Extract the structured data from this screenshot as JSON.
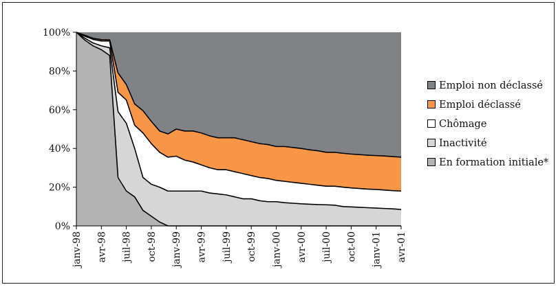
{
  "chart_data": {
    "type": "area",
    "stacked": true,
    "percent": true,
    "title": "",
    "xlabel": "",
    "ylabel": "",
    "ylim": [
      0,
      100
    ],
    "y_ticks": [
      "0%",
      "20%",
      "40%",
      "60%",
      "80%",
      "100%"
    ],
    "x_tick_labels": [
      "janv-98",
      "avr-98",
      "juil-98",
      "oct-98",
      "janv-99",
      "avr-99",
      "juil-99",
      "oct-99",
      "janv-00",
      "avr-00",
      "juil-00",
      "oct-00",
      "janv-01",
      "avr-01"
    ],
    "x": [
      "janv-98",
      "févr-98",
      "mars-98",
      "avr-98",
      "mai-98",
      "juin-98",
      "juil-98",
      "août-98",
      "sept-98",
      "oct-98",
      "nov-98",
      "déc-98",
      "janv-99",
      "févr-99",
      "mars-99",
      "avr-99",
      "mai-99",
      "juin-99",
      "juil-99",
      "août-99",
      "sept-99",
      "oct-99",
      "nov-99",
      "déc-99",
      "janv-00",
      "févr-00",
      "mars-00",
      "avr-00",
      "mai-00",
      "juin-00",
      "juil-00",
      "août-00",
      "sept-00",
      "oct-00",
      "nov-00",
      "déc-00",
      "janv-01",
      "févr-01",
      "mars-01",
      "avr-01"
    ],
    "grid": false,
    "legend_position": "right",
    "series": [
      {
        "name": "En formation initiale*",
        "color": "#b3b3b3",
        "values": [
          100,
          96,
          93,
          91,
          88,
          25,
          18,
          15,
          8,
          5,
          2,
          0,
          0,
          0,
          0,
          0,
          0,
          0,
          0,
          0,
          0,
          0,
          0,
          0,
          0,
          0,
          0,
          0,
          0,
          0,
          0,
          0,
          0,
          0,
          0,
          0,
          0,
          0,
          0,
          0
        ]
      },
      {
        "name": "Inactivité",
        "color": "#d6d6d6",
        "values": [
          0,
          1,
          1.5,
          2,
          4,
          34,
          35,
          25,
          17,
          16.5,
          18,
          18,
          18,
          18,
          18,
          18,
          17,
          16.5,
          16,
          15,
          14,
          14,
          13,
          12.5,
          12.5,
          12,
          11.7,
          11.4,
          11.2,
          11,
          10.9,
          10.7,
          10,
          9.8,
          9.6,
          9.4,
          9.2,
          9,
          8.8,
          8.5
        ]
      },
      {
        "name": "Chômage",
        "color": "#ffffff",
        "values": [
          0,
          1,
          1.8,
          2.5,
          3.5,
          10,
          12,
          12,
          23,
          21,
          18,
          17.5,
          18,
          16,
          15,
          13.5,
          13,
          12.5,
          13,
          13,
          13,
          12,
          12,
          12,
          11,
          11,
          10.8,
          10.6,
          10.3,
          10,
          9.6,
          9.8,
          10,
          9.8,
          9.7,
          9.6,
          9.6,
          9.5,
          9.4,
          9.5
        ]
      },
      {
        "name": "Emploi déclassé",
        "color": "#f79646",
        "values": [
          0,
          0.5,
          0.6,
          0.7,
          0.6,
          10,
          8,
          11,
          11.5,
          11.5,
          11,
          12,
          14,
          15,
          16,
          16.5,
          16.5,
          16.5,
          16.5,
          17.5,
          17.5,
          17.5,
          17.5,
          17.5,
          17.5,
          18,
          18,
          18,
          17.8,
          17.8,
          17.5,
          17.5,
          17.5,
          17.5,
          17.5,
          17.5,
          17.5,
          17.6,
          17.6,
          17.5
        ]
      },
      {
        "name": "Emploi non déclassé",
        "color": "#808285",
        "values": [
          0,
          1.5,
          3.1,
          3.8,
          3.9,
          21,
          27,
          37,
          40.5,
          46,
          51,
          52.5,
          50,
          51,
          51,
          52,
          53.5,
          54.5,
          54.5,
          54.5,
          55.5,
          56.5,
          57.5,
          58,
          59,
          59,
          59.5,
          60,
          60.7,
          61.2,
          62,
          62,
          62.5,
          62.9,
          63.2,
          63.5,
          63.7,
          63.9,
          64.2,
          64.5
        ]
      }
    ],
    "legend_order": [
      "Emploi non déclassé",
      "Emploi déclassé",
      "Chômage",
      "Inactivité",
      "En formation initiale*"
    ]
  }
}
